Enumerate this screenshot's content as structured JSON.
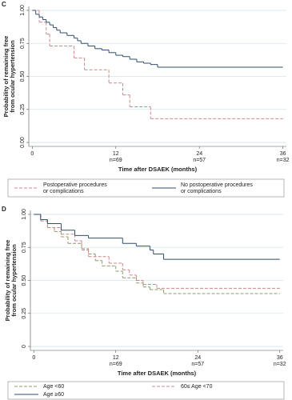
{
  "chart_data": [
    {
      "type": "step",
      "panel": "C",
      "xlabel": "Time after DSAEK (months)",
      "ylabel": [
        "Probability of remaining free",
        "from ocular hypertension"
      ],
      "xlim": [
        -0.5,
        36.5
      ],
      "ylim": [
        -0.03,
        1.03
      ],
      "xticks": [
        0,
        12,
        24,
        36
      ],
      "yticks": [
        {
          "value": 0,
          "label": "0.00"
        },
        {
          "value": 0.25,
          "label": "0.25"
        },
        {
          "value": 0.5,
          "label": "0.50"
        },
        {
          "value": 0.75,
          "label": "0.75"
        },
        {
          "value": 1,
          "label": "1.00"
        }
      ],
      "at_risk": [
        {
          "value": 12,
          "label": "n=69"
        },
        {
          "value": 24,
          "label": "n=57"
        },
        {
          "value": 36,
          "label": "n=32"
        }
      ],
      "grid": true,
      "legend": "bottom",
      "series": [
        {
          "name": [
            "Postoperative procedures",
            "or complications"
          ],
          "color": "#c98a8c",
          "dashed": true,
          "x": [
            0,
            1,
            2,
            2.5,
            6,
            7.5,
            11,
            13,
            14,
            17,
            36
          ],
          "values": [
            1,
            0.91,
            0.82,
            0.73,
            0.64,
            0.55,
            0.45,
            0.36,
            0.27,
            0.18,
            0.18
          ]
        },
        {
          "name": [
            "No postoperative procedures",
            "or complications"
          ],
          "color": "#2f4d6e",
          "dashed": false,
          "x": [
            0,
            0.5,
            1,
            1.5,
            2,
            2.5,
            3,
            3.5,
            4,
            5,
            6,
            6.5,
            7,
            8,
            9,
            10,
            11,
            12,
            13,
            14,
            15,
            16,
            17,
            18,
            36
          ],
          "values": [
            1,
            0.97,
            0.95,
            0.93,
            0.91,
            0.89,
            0.87,
            0.85,
            0.83,
            0.81,
            0.79,
            0.77,
            0.75,
            0.73,
            0.71,
            0.7,
            0.68,
            0.66,
            0.65,
            0.63,
            0.61,
            0.6,
            0.59,
            0.57,
            0.57
          ]
        }
      ]
    },
    {
      "type": "step",
      "panel": "D",
      "xlabel": "Time after DSAEK (months)",
      "ylabel": [
        "Probability of remaining free",
        "from ocular hypertension"
      ],
      "xlim": [
        -0.5,
        36.5
      ],
      "ylim": [
        -0.03,
        1.03
      ],
      "xticks": [
        0,
        12,
        24,
        36
      ],
      "yticks": [
        {
          "value": 0,
          "label": "0"
        },
        {
          "value": 0.25,
          "label": "0.25"
        },
        {
          "value": 0.5,
          "label": "0.50"
        },
        {
          "value": 0.75,
          "label": "0.75"
        },
        {
          "value": 1,
          "label": "1.00"
        }
      ],
      "at_risk": [
        {
          "value": 12,
          "label": "n=69"
        },
        {
          "value": 24,
          "label": "n=57"
        },
        {
          "value": 36,
          "label": "n=32"
        }
      ],
      "grid": true,
      "legend": "bottom",
      "series": [
        {
          "name": "Age <60",
          "color": "#8c9c6c",
          "dashed": true,
          "x": [
            0,
            1,
            2,
            3,
            4,
            5,
            7,
            8,
            9,
            10,
            12,
            13,
            15,
            16,
            17,
            19,
            36
          ],
          "values": [
            1,
            0.96,
            0.9,
            0.87,
            0.83,
            0.78,
            0.74,
            0.7,
            0.65,
            0.61,
            0.57,
            0.52,
            0.48,
            0.45,
            0.43,
            0.4,
            0.4
          ]
        },
        {
          "name": "60≤ Age <70",
          "color": "#c98a8c",
          "dashed": true,
          "x": [
            0,
            1,
            2,
            4,
            6,
            7,
            8,
            11,
            13,
            14,
            15,
            16,
            18,
            36
          ],
          "values": [
            1,
            0.95,
            0.9,
            0.85,
            0.8,
            0.73,
            0.68,
            0.63,
            0.58,
            0.54,
            0.5,
            0.47,
            0.44,
            0.44
          ]
        },
        {
          "name": "Age ≥60",
          "color": "#2f4d6e",
          "dashed": false,
          "x": [
            0,
            1,
            2,
            4,
            6,
            8,
            13,
            15,
            17,
            17.5,
            19,
            36
          ],
          "values": [
            1,
            0.96,
            0.93,
            0.88,
            0.84,
            0.82,
            0.78,
            0.76,
            0.73,
            0.7,
            0.66,
            0.66
          ]
        }
      ]
    }
  ]
}
